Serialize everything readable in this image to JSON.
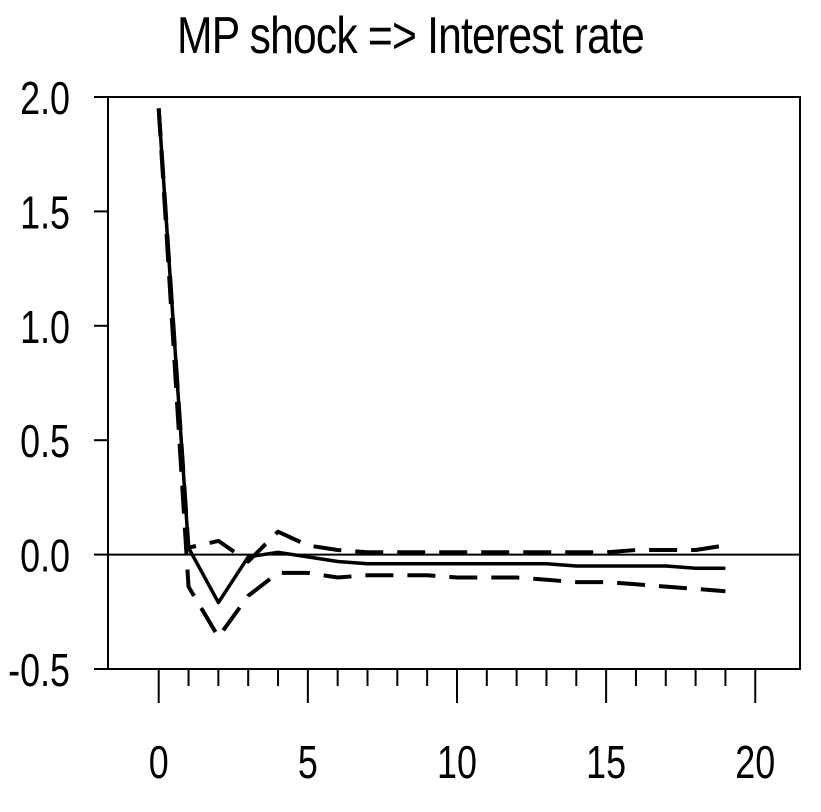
{
  "chart_data": {
    "type": "line",
    "title": "MP shock => Interest rate",
    "xlabel": "",
    "ylabel": "",
    "xlim": [
      -1.7,
      21.5
    ],
    "ylim": [
      -0.5,
      2.0
    ],
    "x_ticks": [
      0,
      5,
      10,
      15,
      20
    ],
    "x_tick_labels": [
      "0",
      "5",
      "10",
      "15",
      "20"
    ],
    "x_minor_ticks": [
      0,
      1,
      2,
      3,
      4,
      5,
      6,
      7,
      8,
      9,
      10,
      11,
      12,
      13,
      14,
      15,
      16,
      17,
      18,
      19,
      20
    ],
    "y_ticks": [
      -0.5,
      0.0,
      0.5,
      1.0,
      1.5,
      2.0
    ],
    "y_tick_labels": [
      "-0.5",
      "0.0",
      "0.5",
      "1.0",
      "1.5",
      "2.0"
    ],
    "zero_line": true,
    "grid": false,
    "x": [
      0,
      1,
      2,
      3,
      4,
      5,
      6,
      7,
      8,
      9,
      10,
      11,
      12,
      13,
      14,
      15,
      16,
      17,
      18,
      19
    ],
    "series": [
      {
        "role": "estimate",
        "style": "solid",
        "values": [
          1.95,
          0.03,
          -0.21,
          -0.01,
          0.01,
          -0.01,
          -0.03,
          -0.04,
          -0.04,
          -0.04,
          -0.04,
          -0.04,
          -0.04,
          -0.04,
          -0.05,
          -0.05,
          -0.05,
          -0.05,
          -0.06,
          -0.06
        ]
      },
      {
        "role": "upper band",
        "style": "dashed",
        "values": [
          1.95,
          0.03,
          0.06,
          -0.03,
          0.1,
          0.04,
          0.02,
          0.01,
          0.01,
          0.01,
          0.01,
          0.01,
          0.01,
          0.01,
          0.01,
          0.01,
          0.02,
          0.02,
          0.02,
          0.04
        ]
      },
      {
        "role": "lower band",
        "style": "dashed",
        "values": [
          1.95,
          -0.14,
          -0.36,
          -0.18,
          -0.08,
          -0.08,
          -0.1,
          -0.09,
          -0.09,
          -0.09,
          -0.1,
          -0.1,
          -0.1,
          -0.11,
          -0.12,
          -0.12,
          -0.13,
          -0.14,
          -0.15,
          -0.16
        ]
      }
    ],
    "colors": {
      "line": "#000000",
      "background": "#ffffff"
    }
  }
}
